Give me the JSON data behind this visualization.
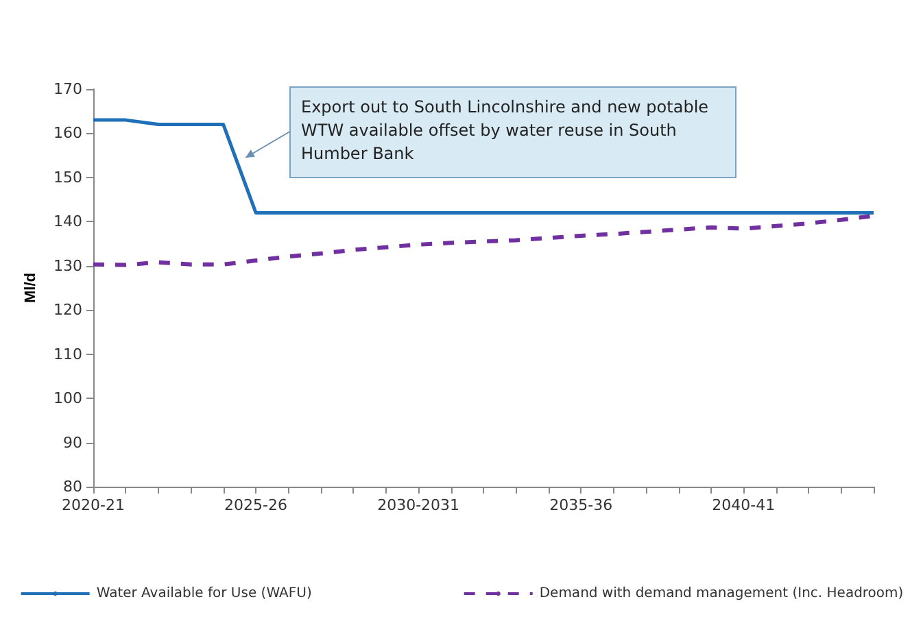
{
  "chart_data": {
    "type": "line",
    "ylabel": "Ml/d",
    "categories": [
      "2020-21",
      null,
      null,
      null,
      null,
      "2025-26",
      null,
      null,
      null,
      null,
      "2030-2031",
      null,
      null,
      null,
      null,
      "2035-36",
      null,
      null,
      null,
      null,
      "2040-41",
      null,
      null,
      null,
      null
    ],
    "series": [
      {
        "name": "Water Available for Use (WAFU)",
        "color": "#1f70b8",
        "line_style": "solid",
        "values": [
          163,
          163,
          162,
          162,
          162,
          142,
          142,
          142,
          142,
          142,
          142,
          142,
          142,
          142,
          142,
          142,
          142,
          142,
          142,
          142,
          142,
          142,
          142,
          142,
          142
        ]
      },
      {
        "name": "Demand with demand management (Inc. Headroom)",
        "color": "#7030a0",
        "line_style": "dashed",
        "values": [
          130.3,
          130.2,
          130.8,
          130.3,
          130.3,
          131.2,
          132.1,
          132.8,
          133.6,
          134.2,
          134.8,
          135.2,
          135.5,
          135.8,
          136.3,
          136.8,
          137.2,
          137.7,
          138.2,
          138.7,
          138.4,
          139,
          139.6,
          140.4,
          141.3
        ]
      }
    ],
    "ylim": [
      80,
      170
    ],
    "yticks": [
      80,
      90,
      100,
      110,
      120,
      130,
      140,
      150,
      160,
      170
    ],
    "grid": false,
    "legend": "bottom",
    "marker": "none",
    "annotations": [
      "Export out to South Lincolnshire and new potable WTW available offset by water reuse in South Humber Bank"
    ]
  }
}
